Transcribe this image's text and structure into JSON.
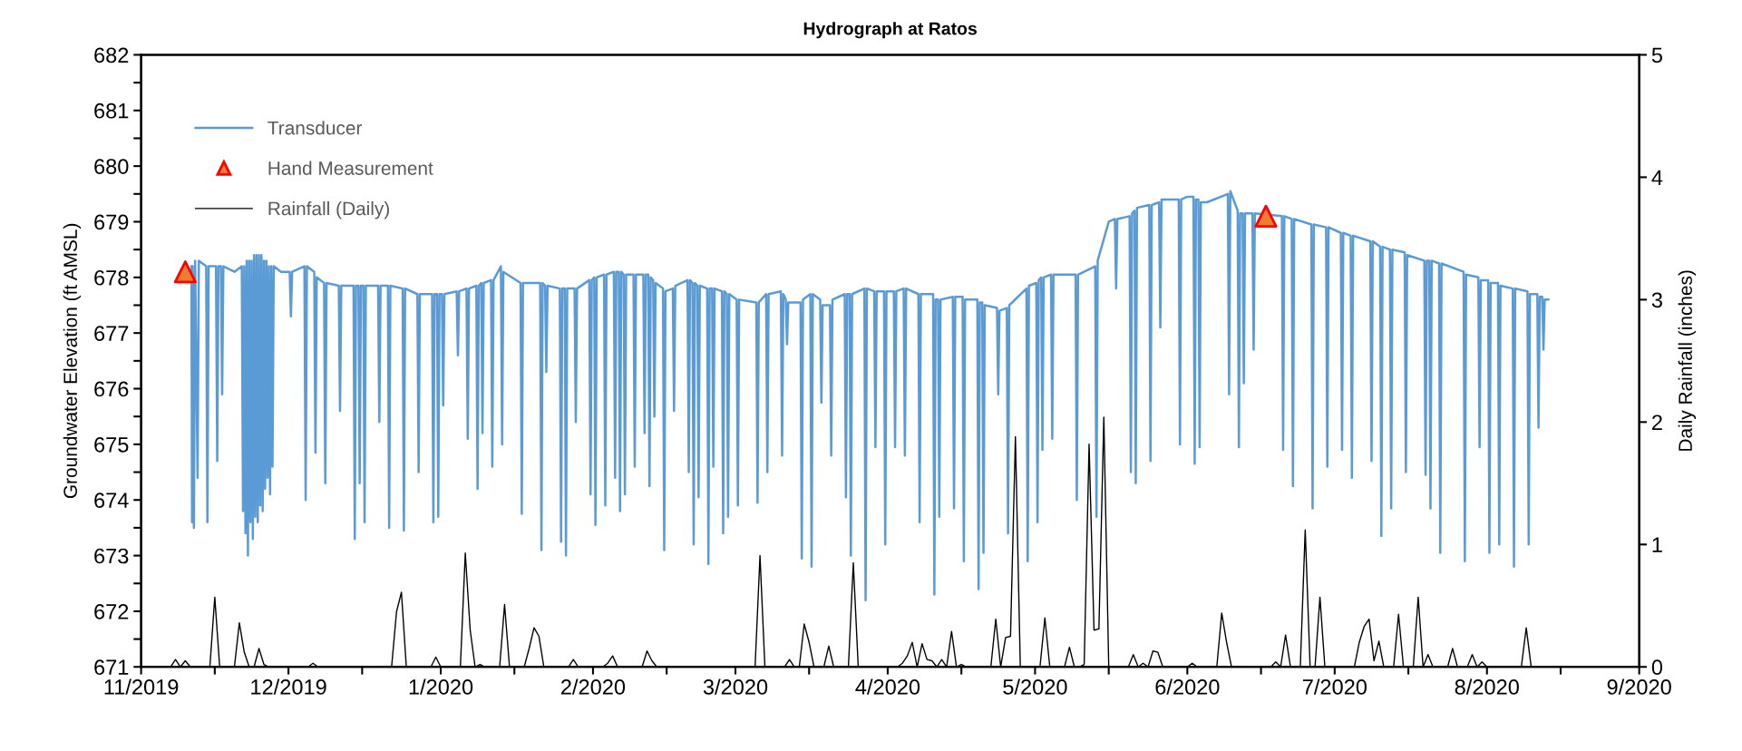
{
  "chart_data": {
    "type": "line",
    "title": "Hydrograph at Ratos",
    "ylabel": "Groundwater Elevation (ft AMSL)",
    "y2label": "Daily Rainfall (inches)",
    "xlim": [
      "2019-11-01",
      "2020-09-01"
    ],
    "xticks": [
      {
        "value": "2019-11-01",
        "label": "11/2019"
      },
      {
        "value": "2019-11-16",
        "label": null
      },
      {
        "value": "2019-12-01",
        "label": "12/2019"
      },
      {
        "value": "2019-12-16",
        "label": null
      },
      {
        "value": "2020-01-01",
        "label": "1/2020"
      },
      {
        "value": "2020-01-16",
        "label": null
      },
      {
        "value": "2020-02-01",
        "label": "2/2020"
      },
      {
        "value": "2020-02-16",
        "label": null
      },
      {
        "value": "2020-03-01",
        "label": "3/2020"
      },
      {
        "value": "2020-03-16",
        "label": null
      },
      {
        "value": "2020-04-01",
        "label": "4/2020"
      },
      {
        "value": "2020-04-16",
        "label": null
      },
      {
        "value": "2020-05-01",
        "label": "5/2020"
      },
      {
        "value": "2020-05-16",
        "label": null
      },
      {
        "value": "2020-06-01",
        "label": "6/2020"
      },
      {
        "value": "2020-06-16",
        "label": null
      },
      {
        "value": "2020-07-01",
        "label": "7/2020"
      },
      {
        "value": "2020-07-16",
        "label": null
      },
      {
        "value": "2020-08-01",
        "label": "8/2020"
      },
      {
        "value": "2020-08-16",
        "label": null
      },
      {
        "value": "2020-09-01",
        "label": "9/2020"
      }
    ],
    "ylim": [
      671,
      682
    ],
    "yticks": [
      671,
      {
        "value": 671.5,
        "label": null
      },
      672,
      {
        "value": 672.5,
        "label": null
      },
      673,
      {
        "value": 673.5,
        "label": null
      },
      674,
      {
        "value": 674.5,
        "label": null
      },
      675,
      {
        "value": 675.5,
        "label": null
      },
      676,
      {
        "value": 676.5,
        "label": null
      },
      677,
      {
        "value": 677.5,
        "label": null
      },
      678,
      {
        "value": 678.5,
        "label": null
      },
      679,
      {
        "value": 679.5,
        "label": null
      },
      680,
      {
        "value": 680.5,
        "label": null
      },
      681,
      {
        "value": 681.5,
        "label": null
      },
      682
    ],
    "y2lim": [
      0,
      5
    ],
    "y2ticks": [
      0,
      1,
      2,
      3,
      4,
      5
    ],
    "grid": false,
    "legend": "top left",
    "series": [
      {
        "name": "Transducer",
        "color": "#5b9bd5",
        "line_style": "solid",
        "x": [
          "2019-11-11T06:00",
          "2019-11-11T09:00",
          "2019-11-11T12:00",
          "2019-11-11T18:00",
          "2019-11-12T00:00",
          "2019-11-12T12:00",
          "2019-11-12T18:00",
          "2019-11-14T06:00",
          "2019-11-14T12:00",
          "2019-11-14T18:00",
          "2019-11-16T06:00",
          "2019-11-16T12:00",
          "2019-11-16T18:00",
          "2019-11-17T06:00",
          "2019-11-17T12:00",
          "2019-11-17T18:00",
          "2019-11-20T00:00",
          "2019-11-21T12:00",
          "2019-11-21T18:00",
          "2019-11-22T00:00",
          "2019-11-22T06:00",
          "2019-11-22T12:00",
          "2019-11-22T18:00",
          "2019-11-23T00:00",
          "2019-11-23T06:00",
          "2019-11-23T12:00",
          "2019-11-23T18:00",
          "2019-11-24T00:00",
          "2019-11-24T06:00",
          "2019-11-24T12:00",
          "2019-11-24T18:00",
          "2019-11-25T00:00",
          "2019-11-25T06:00",
          "2019-11-25T12:00",
          "2019-11-25T18:00",
          "2019-11-26T00:00",
          "2019-11-26T06:00",
          "2019-11-26T12:00",
          "2019-11-26T18:00",
          "2019-11-27T00:00",
          "2019-11-27T06:00",
          "2019-11-27T12:00",
          "2019-11-27T18:00",
          "2019-11-28T00:00",
          "2019-11-29T12:00",
          "2019-12-01T06:00",
          "2019-12-01T12:00",
          "2019-12-01T18:00",
          "2019-12-04T06:00",
          "2019-12-04T12:00",
          "2019-12-04T18:00",
          "2019-12-06T06:00",
          "2019-12-06T12:00",
          "2019-12-06T18:00",
          "2019-12-08T06:00",
          "2019-12-08T12:00",
          "2019-12-08T18:00",
          "2019-12-11T06:00",
          "2019-12-11T12:00",
          "2019-12-11T18:00",
          "2019-12-14T06:00",
          "2019-12-14T12:00",
          "2019-12-14T18:00",
          "2019-12-15T06:00",
          "2019-12-15T12:00",
          "2019-12-15T18:00",
          "2019-12-16T06:00",
          "2019-12-16T12:00",
          "2019-12-16T18:00",
          "2019-12-19T06:00",
          "2019-12-19T12:00",
          "2019-12-19T18:00",
          "2019-12-21T06:00",
          "2019-12-21T12:00",
          "2019-12-21T18:00",
          "2019-12-24T06:00",
          "2019-12-24T12:00",
          "2019-12-24T18:00",
          "2019-12-27T06:00",
          "2019-12-27T12:00",
          "2019-12-27T18:00",
          "2019-12-30T06:00",
          "2019-12-30T12:00",
          "2019-12-30T18:00",
          "2019-12-31T06:00",
          "2019-12-31T12:00",
          "2019-12-31T18:00",
          "2020-01-01T06:00",
          "2020-01-01T12:00",
          "2020-01-01T18:00",
          "2020-01-04T06:00",
          "2020-01-04T12:00",
          "2020-01-04T18:00",
          "2020-01-06T06:00",
          "2020-01-06T12:00",
          "2020-01-06T18:00",
          "2020-01-08T06:00",
          "2020-01-08T12:00",
          "2020-01-08T18:00",
          "2020-01-09T06:00",
          "2020-01-09T12:00",
          "2020-01-09T18:00",
          "2020-01-11T06:00",
          "2020-01-11T12:00",
          "2020-01-11T18:00",
          "2020-01-13T06:00",
          "2020-01-13T12:00",
          "2020-01-13T18:00",
          "2020-01-17T06:00",
          "2020-01-17T12:00",
          "2020-01-17T18:00",
          "2020-01-21T06:00",
          "2020-01-21T12:00",
          "2020-01-21T18:00",
          "2020-01-22T06:00",
          "2020-01-22T12:00",
          "2020-01-22T18:00",
          "2020-01-25T06:00",
          "2020-01-25T12:00",
          "2020-01-25T18:00",
          "2020-01-26T06:00",
          "2020-01-26T12:00",
          "2020-01-26T18:00",
          "2020-01-28T06:00",
          "2020-01-28T12:00",
          "2020-01-28T18:00",
          "2020-01-31T06:00",
          "2020-01-31T12:00",
          "2020-01-31T18:00",
          "2020-02-01T06:00",
          "2020-02-01T12:00",
          "2020-02-01T18:00",
          "2020-02-03T06:00",
          "2020-02-03T12:00",
          "2020-02-03T18:00",
          "2020-02-05T06:00",
          "2020-02-05T12:00",
          "2020-02-05T18:00",
          "2020-02-06T06:00",
          "2020-02-06T12:00",
          "2020-02-06T18:00",
          "2020-02-07T06:00",
          "2020-02-07T12:00",
          "2020-02-07T18:00",
          "2020-02-09T06:00",
          "2020-02-09T12:00",
          "2020-02-09T18:00",
          "2020-02-11T06:00",
          "2020-02-11T12:00",
          "2020-02-11T18:00",
          "2020-02-12T06:00",
          "2020-02-12T12:00",
          "2020-02-12T18:00",
          "2020-02-13T06:00",
          "2020-02-13T12:00",
          "2020-02-13T18:00",
          "2020-02-15T06:00",
          "2020-02-15T12:00",
          "2020-02-15T18:00",
          "2020-02-17T06:00",
          "2020-02-17T12:00",
          "2020-02-17T18:00",
          "2020-02-20T06:00",
          "2020-02-20T12:00",
          "2020-02-20T18:00",
          "2020-02-21T06:00",
          "2020-02-21T12:00",
          "2020-02-21T18:00",
          "2020-02-22T06:00",
          "2020-02-22T12:00",
          "2020-02-22T18:00",
          "2020-02-24T06:00",
          "2020-02-24T12:00",
          "2020-02-24T18:00",
          "2020-02-25T06:00",
          "2020-02-25T12:00",
          "2020-02-25T18:00",
          "2020-02-27T06:00",
          "2020-02-27T12:00",
          "2020-02-27T18:00",
          "2020-02-28T06:00",
          "2020-02-28T12:00",
          "2020-02-28T18:00",
          "2020-03-01T06:00",
          "2020-03-01T12:00",
          "2020-03-01T18:00",
          "2020-03-05T06:00",
          "2020-03-05T12:00",
          "2020-03-05T18:00",
          "2020-03-07T06:00",
          "2020-03-07T12:00",
          "2020-03-07T18:00",
          "2020-03-10T06:00",
          "2020-03-10T12:00",
          "2020-03-10T18:00",
          "2020-03-11T06:00",
          "2020-03-11T12:00",
          "2020-03-11T18:00",
          "2020-03-14T06:00",
          "2020-03-14T12:00",
          "2020-03-14T18:00",
          "2020-03-16T06:00",
          "2020-03-16T12:00",
          "2020-03-16T18:00",
          "2020-03-18T06:00",
          "2020-03-18T12:00",
          "2020-03-18T18:00",
          "2020-03-20T06:00",
          "2020-03-20T12:00",
          "2020-03-20T18:00",
          "2020-03-23T06:00",
          "2020-03-23T12:00",
          "2020-03-23T18:00",
          "2020-03-24T06:00",
          "2020-03-24T12:00",
          "2020-03-24T18:00",
          "2020-03-27T06:00",
          "2020-03-27T12:00",
          "2020-03-27T18:00",
          "2020-03-29T06:00",
          "2020-03-29T12:00",
          "2020-03-29T18:00",
          "2020-03-31T06:00",
          "2020-03-31T12:00",
          "2020-03-31T18:00",
          "2020-04-02T06:00",
          "2020-04-02T12:00",
          "2020-04-02T18:00",
          "2020-04-04T06:00",
          "2020-04-04T12:00",
          "2020-04-04T18:00",
          "2020-04-07T06:00",
          "2020-04-07T12:00",
          "2020-04-07T18:00",
          "2020-04-10T06:00",
          "2020-04-10T12:00",
          "2020-04-10T18:00",
          "2020-04-11T06:00",
          "2020-04-11T12:00",
          "2020-04-11T18:00",
          "2020-04-14T06:00",
          "2020-04-14T12:00",
          "2020-04-14T18:00",
          "2020-04-16T06:00",
          "2020-04-16T12:00",
          "2020-04-16T18:00",
          "2020-04-19T06:00",
          "2020-04-19T12:00",
          "2020-04-19T18:00",
          "2020-04-20T06:00",
          "2020-04-20T12:00",
          "2020-04-20T18:00",
          "2020-04-23T06:00",
          "2020-04-23T12:00",
          "2020-04-23T18:00",
          "2020-04-25T06:00",
          "2020-04-25T12:00",
          "2020-04-25T18:00",
          "2020-04-29T06:00",
          "2020-04-29T12:00",
          "2020-04-29T18:00",
          "2020-05-01T06:00",
          "2020-05-01T12:00",
          "2020-05-01T18:00",
          "2020-05-02T06:00",
          "2020-05-02T12:00",
          "2020-05-02T18:00",
          "2020-05-04T06:00",
          "2020-05-04T12:00",
          "2020-05-04T18:00",
          "2020-05-09T06:00",
          "2020-05-09T12:00",
          "2020-05-09T18:00",
          "2020-05-13T06:00",
          "2020-05-13T12:00",
          "2020-05-13T18:00",
          "2020-05-16T00:00",
          "2020-05-17T06:00",
          "2020-05-17T12:00",
          "2020-05-17T18:00",
          "2020-05-20T06:00",
          "2020-05-20T12:00",
          "2020-05-20T18:00",
          "2020-05-21T06:00",
          "2020-05-21T12:00",
          "2020-05-21T18:00",
          "2020-05-24T06:00",
          "2020-05-24T12:00",
          "2020-05-24T18:00",
          "2020-05-26T06:00",
          "2020-05-26T12:00",
          "2020-05-26T18:00",
          "2020-05-30T06:00",
          "2020-05-30T12:00",
          "2020-05-30T18:00",
          "2020-06-01T00:00",
          "2020-06-02T06:00",
          "2020-06-02T12:00",
          "2020-06-02T18:00",
          "2020-06-03T06:00",
          "2020-06-03T12:00",
          "2020-06-03T18:00",
          "2020-06-05T00:00",
          "2020-06-09T06:00",
          "2020-06-09T12:00",
          "2020-06-09T18:00",
          "2020-06-11T06:00",
          "2020-06-11T12:00",
          "2020-06-11T18:00",
          "2020-06-12T06:00",
          "2020-06-12T12:00",
          "2020-06-12T18:00",
          "2020-06-14T06:00",
          "2020-06-14T12:00",
          "2020-06-14T18:00",
          "2020-06-20T06:00",
          "2020-06-20T12:00",
          "2020-06-20T18:00",
          "2020-06-22T06:00",
          "2020-06-22T12:00",
          "2020-06-22T18:00",
          "2020-06-26T06:00",
          "2020-06-26T12:00",
          "2020-06-26T18:00",
          "2020-06-29T06:00",
          "2020-06-29T12:00",
          "2020-06-29T18:00",
          "2020-07-02T06:00",
          "2020-07-02T12:00",
          "2020-07-02T18:00",
          "2020-07-04T06:00",
          "2020-07-04T12:00",
          "2020-07-04T18:00",
          "2020-07-08T06:00",
          "2020-07-08T12:00",
          "2020-07-08T18:00",
          "2020-07-10T06:00",
          "2020-07-10T12:00",
          "2020-07-10T18:00",
          "2020-07-12T06:00",
          "2020-07-12T12:00",
          "2020-07-12T18:00",
          "2020-07-15T06:00",
          "2020-07-15T12:00",
          "2020-07-15T18:00",
          "2020-07-19T06:00",
          "2020-07-19T12:00",
          "2020-07-19T18:00",
          "2020-07-20T06:00",
          "2020-07-20T12:00",
          "2020-07-20T18:00",
          "2020-07-22T06:00",
          "2020-07-22T12:00",
          "2020-07-22T18:00",
          "2020-07-27T06:00",
          "2020-07-27T12:00",
          "2020-07-27T18:00",
          "2020-07-30T06:00",
          "2020-07-30T12:00",
          "2020-07-30T18:00",
          "2020-08-01T06:00",
          "2020-08-01T12:00",
          "2020-08-01T18:00",
          "2020-08-03T06:00",
          "2020-08-03T12:00",
          "2020-08-03T18:00",
          "2020-08-06T06:00",
          "2020-08-06T12:00",
          "2020-08-06T18:00",
          "2020-08-09T06:00",
          "2020-08-09T12:00",
          "2020-08-09T18:00",
          "2020-08-11T06:00",
          "2020-08-11T12:00",
          "2020-08-11T18:00",
          "2020-08-12T06:00",
          "2020-08-12T12:00",
          "2020-08-12T18:00",
          "2020-08-13T12:00"
        ],
        "values": [
          678.2,
          673.6,
          678.2,
          673.5,
          678.3,
          674.4,
          678.3,
          678.2,
          673.6,
          678.2,
          678.2,
          674.7,
          678.2,
          678.2,
          675.9,
          678.2,
          678.1,
          678.2,
          673.8,
          678.2,
          673.4,
          678.3,
          673.0,
          678.3,
          673.6,
          678.3,
          673.3,
          678.4,
          673.7,
          678.4,
          673.6,
          678.4,
          673.9,
          678.4,
          673.8,
          678.3,
          674.2,
          678.3,
          674.4,
          678.2,
          674.1,
          678.2,
          674.6,
          678.2,
          678.1,
          678.1,
          677.3,
          678.1,
          678.2,
          674.0,
          678.2,
          678.1,
          674.85,
          678.0,
          677.9,
          674.3,
          677.9,
          677.85,
          675.6,
          677.85,
          677.85,
          673.3,
          677.85,
          677.85,
          674.3,
          677.85,
          677.85,
          673.6,
          677.85,
          677.85,
          675.4,
          677.85,
          677.85,
          673.5,
          677.85,
          677.8,
          673.45,
          677.8,
          677.7,
          674.5,
          677.7,
          677.7,
          673.6,
          677.7,
          677.7,
          673.7,
          677.7,
          677.7,
          675.7,
          677.7,
          677.75,
          676.6,
          677.75,
          677.8,
          675.1,
          677.8,
          677.85,
          674.2,
          677.85,
          677.9,
          675.2,
          677.9,
          677.95,
          674.6,
          677.95,
          678.2,
          675.0,
          678.1,
          677.9,
          673.75,
          677.9,
          677.9,
          673.1,
          677.9,
          677.85,
          676.3,
          677.85,
          677.8,
          673.25,
          677.8,
          677.8,
          673.0,
          677.8,
          677.8,
          675.4,
          677.8,
          677.95,
          674.1,
          677.95,
          678.0,
          673.55,
          678.0,
          678.05,
          673.9,
          678.05,
          678.1,
          674.4,
          678.1,
          678.1,
          673.8,
          678.1,
          678.05,
          674.1,
          678.05,
          678.05,
          674.6,
          678.05,
          678.05,
          675.2,
          678.05,
          678.05,
          674.25,
          678.0,
          677.95,
          675.5,
          677.9,
          677.8,
          673.1,
          677.75,
          677.8,
          675.6,
          677.85,
          677.95,
          674.5,
          677.95,
          677.9,
          673.2,
          677.9,
          677.85,
          674.05,
          677.85,
          677.8,
          672.85,
          677.8,
          677.8,
          674.6,
          677.8,
          677.75,
          673.4,
          677.75,
          677.7,
          673.7,
          677.7,
          677.6,
          673.9,
          677.6,
          677.55,
          673.95,
          677.55,
          677.7,
          674.5,
          677.7,
          677.75,
          674.8,
          677.7,
          677.6,
          676.8,
          677.55,
          677.55,
          672.95,
          677.6,
          677.7,
          672.8,
          677.7,
          677.6,
          675.75,
          677.5,
          677.5,
          674.8,
          677.6,
          677.7,
          674.05,
          677.7,
          677.7,
          673.0,
          677.7,
          677.8,
          672.2,
          677.8,
          677.75,
          674.95,
          677.75,
          677.75,
          673.2,
          677.75,
          677.75,
          674.95,
          677.75,
          677.8,
          674.8,
          677.8,
          677.7,
          673.6,
          677.7,
          677.7,
          672.3,
          677.6,
          677.6,
          673.7,
          677.6,
          677.65,
          673.85,
          677.65,
          677.65,
          672.9,
          677.6,
          677.6,
          672.4,
          677.55,
          677.55,
          673.05,
          677.5,
          677.45,
          675.9,
          677.4,
          677.45,
          673.4,
          677.5,
          677.8,
          672.9,
          677.85,
          677.9,
          673.6,
          677.95,
          678.0,
          674.9,
          678.0,
          678.05,
          675.1,
          678.05,
          678.05,
          674.0,
          678.05,
          678.2,
          673.7,
          678.3,
          679.0,
          679.05,
          677.8,
          679.05,
          679.1,
          674.5,
          679.15,
          679.2,
          674.3,
          679.25,
          679.3,
          674.7,
          679.3,
          679.35,
          677.1,
          679.4,
          679.4,
          675.0,
          679.4,
          679.45,
          679.45,
          674.65,
          679.4,
          679.4,
          674.95,
          679.35,
          679.35,
          679.5,
          675.9,
          679.55,
          679.2,
          674.95,
          679.15,
          679.15,
          676.1,
          679.15,
          679.15,
          676.7,
          679.15,
          679.1,
          674.9,
          679.1,
          679.05,
          674.25,
          679.05,
          678.95,
          673.85,
          678.95,
          678.9,
          674.6,
          678.9,
          678.8,
          674.9,
          678.8,
          678.75,
          674.4,
          678.75,
          678.65,
          674.7,
          678.65,
          678.55,
          673.35,
          678.55,
          678.5,
          673.85,
          678.5,
          678.45,
          674.5,
          678.4,
          678.3,
          674.45,
          678.3,
          678.3,
          673.85,
          678.3,
          678.25,
          673.05,
          678.25,
          678.1,
          672.9,
          678.05,
          678.0,
          674.95,
          677.95,
          677.95,
          673.05,
          677.9,
          677.9,
          673.2,
          677.85,
          677.8,
          672.8,
          677.8,
          677.75,
          673.2,
          677.7,
          677.7,
          675.3,
          677.65,
          677.65,
          676.7,
          677.6,
          677.6
        ]
      },
      {
        "name": "Hand Measurement",
        "type": "scatter",
        "color": "#ed7d31",
        "marker": "triangle",
        "x": [
          "2019-11-10",
          "2020-06-17"
        ],
        "values": [
          678.1,
          679.1
        ]
      },
      {
        "name": "Rainfall (Daily)",
        "color": "#000000",
        "axis": "y2",
        "line_style": "solid",
        "x": [
          "2019-11-01",
          "2019-11-07",
          "2019-11-08",
          "2019-11-09",
          "2019-11-10",
          "2019-11-11",
          "2019-11-15",
          "2019-11-16",
          "2019-11-17",
          "2019-11-20",
          "2019-11-21",
          "2019-11-22",
          "2019-11-23",
          "2019-11-24",
          "2019-11-25",
          "2019-11-26",
          "2019-11-27",
          "2019-12-05",
          "2019-12-06",
          "2019-12-07",
          "2019-12-22",
          "2019-12-23",
          "2019-12-24",
          "2019-12-25",
          "2019-12-30",
          "2019-12-31",
          "2020-01-01",
          "2020-01-05",
          "2020-01-06",
          "2020-01-07",
          "2020-01-08",
          "2020-01-09",
          "2020-01-10",
          "2020-01-13",
          "2020-01-14",
          "2020-01-15",
          "2020-01-18",
          "2020-01-19",
          "2020-01-20",
          "2020-01-21",
          "2020-01-22",
          "2020-01-27",
          "2020-01-28",
          "2020-01-29",
          "2020-02-03",
          "2020-02-04",
          "2020-02-05",
          "2020-02-06",
          "2020-02-11",
          "2020-02-12",
          "2020-02-13",
          "2020-02-14",
          "2020-03-05",
          "2020-03-06",
          "2020-03-07",
          "2020-03-11",
          "2020-03-12",
          "2020-03-13",
          "2020-03-14",
          "2020-03-15",
          "2020-03-16",
          "2020-03-17",
          "2020-03-19",
          "2020-03-20",
          "2020-03-21",
          "2020-03-24",
          "2020-03-25",
          "2020-03-26",
          "2020-04-03",
          "2020-04-04",
          "2020-04-05",
          "2020-04-06",
          "2020-04-07",
          "2020-04-08",
          "2020-04-09",
          "2020-04-10",
          "2020-04-11",
          "2020-04-12",
          "2020-04-13",
          "2020-04-14",
          "2020-04-15",
          "2020-04-16",
          "2020-04-17",
          "2020-04-22",
          "2020-04-23",
          "2020-04-24",
          "2020-04-25",
          "2020-04-26",
          "2020-04-27",
          "2020-04-28",
          "2020-05-02",
          "2020-05-03",
          "2020-05-04",
          "2020-05-07",
          "2020-05-08",
          "2020-05-09",
          "2020-05-10",
          "2020-05-11",
          "2020-05-12",
          "2020-05-13",
          "2020-05-14",
          "2020-05-15",
          "2020-05-16",
          "2020-05-20",
          "2020-05-21",
          "2020-05-22",
          "2020-05-23",
          "2020-05-24",
          "2020-05-25",
          "2020-05-26",
          "2020-05-27",
          "2020-06-01",
          "2020-06-02",
          "2020-06-03",
          "2020-06-07",
          "2020-06-08",
          "2020-06-09",
          "2020-06-10",
          "2020-06-18",
          "2020-06-19",
          "2020-06-20",
          "2020-06-21",
          "2020-06-22",
          "2020-06-24",
          "2020-06-25",
          "2020-06-26",
          "2020-06-27",
          "2020-06-28",
          "2020-06-29",
          "2020-07-05",
          "2020-07-06",
          "2020-07-07",
          "2020-07-08",
          "2020-07-09",
          "2020-07-10",
          "2020-07-11",
          "2020-07-13",
          "2020-07-14",
          "2020-07-15",
          "2020-07-17",
          "2020-07-18",
          "2020-07-19",
          "2020-07-20",
          "2020-07-21",
          "2020-07-24",
          "2020-07-25",
          "2020-07-26",
          "2020-07-28",
          "2020-07-29",
          "2020-07-30",
          "2020-07-31",
          "2020-08-01",
          "2020-08-08",
          "2020-08-09",
          "2020-08-10"
        ],
        "values": [
          0,
          0,
          0.06,
          0,
          0.05,
          0,
          0,
          0.57,
          0,
          0,
          0.36,
          0.12,
          0,
          0,
          0.15,
          0.02,
          0,
          0,
          0.03,
          0,
          0,
          0.45,
          0.61,
          0,
          0,
          0.08,
          0,
          0,
          0.93,
          0.3,
          0,
          0.02,
          0,
          0,
          0.51,
          0,
          0,
          0.15,
          0.32,
          0.25,
          0,
          0,
          0.06,
          0,
          0,
          0.03,
          0.09,
          0,
          0,
          0.13,
          0.05,
          0,
          0,
          0.91,
          0,
          0,
          0.06,
          0,
          0,
          0.35,
          0.2,
          0,
          0,
          0.17,
          0,
          0,
          0.85,
          0,
          0,
          0.03,
          0.09,
          0.2,
          0,
          0.19,
          0.06,
          0.05,
          0,
          0.06,
          0,
          0.29,
          0,
          0.02,
          0,
          0,
          0.39,
          0,
          0.24,
          0.25,
          1.88,
          0,
          0,
          0.4,
          0,
          0,
          0.16,
          0,
          0,
          0.02,
          1.82,
          0.3,
          0.31,
          2.04,
          0,
          0,
          0.1,
          0,
          0.03,
          0,
          0.13,
          0.12,
          0,
          0,
          0.03,
          0,
          0,
          0.44,
          0.2,
          0,
          0,
          0.04,
          0,
          0.26,
          0,
          0,
          1.12,
          0,
          0,
          0.57,
          0,
          0,
          0.2,
          0.33,
          0.39,
          0.05,
          0.21,
          0,
          0,
          0.43,
          0,
          0,
          0.57,
          0,
          0.1,
          0,
          0,
          0.15,
          0,
          0,
          0.1,
          0,
          0.04,
          0,
          0,
          0.32,
          0
        ]
      }
    ]
  }
}
